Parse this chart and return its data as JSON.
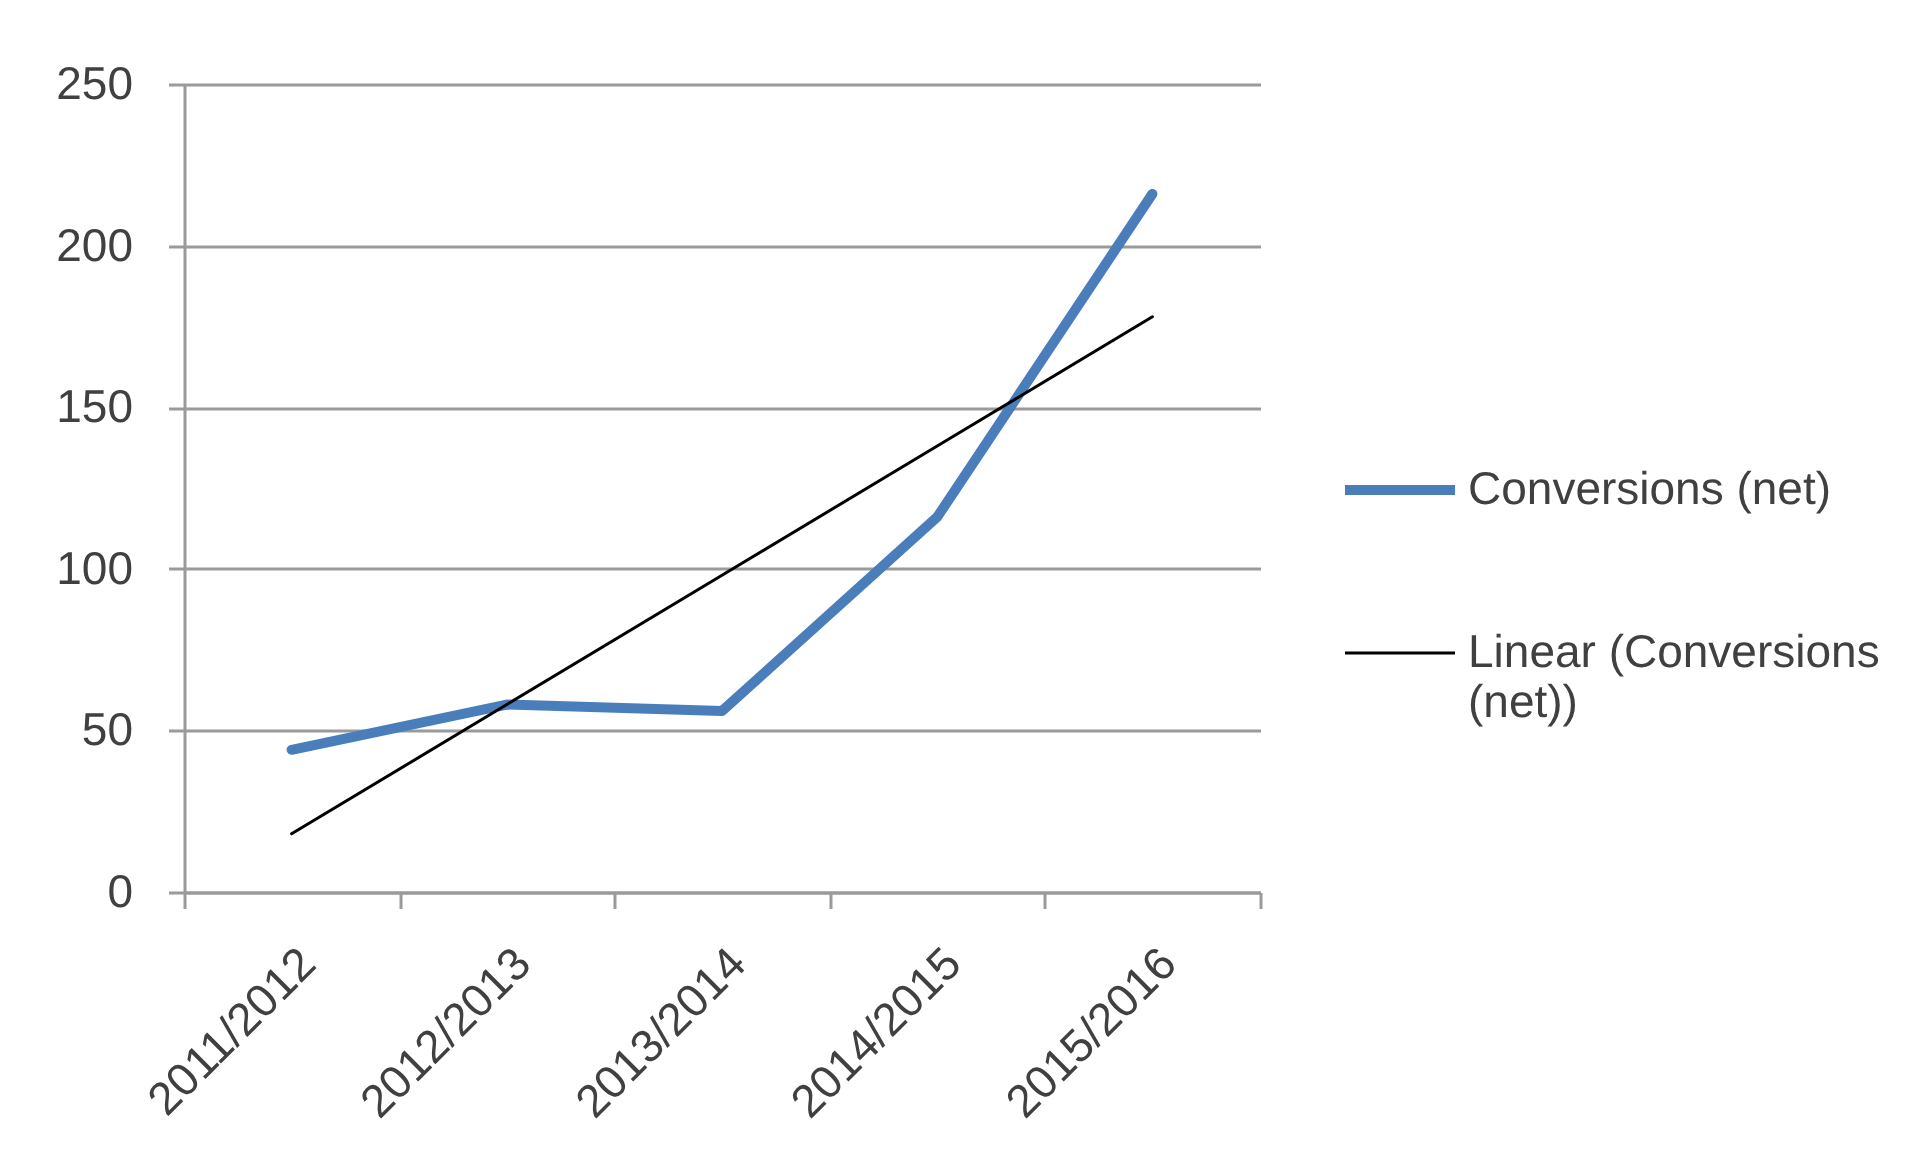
{
  "chart_data": {
    "type": "line",
    "categories": [
      "2011/2012",
      "2012/2013",
      "2013/2014",
      "2014/2015",
      "2015/2016"
    ],
    "series": [
      {
        "name": "Conversions (net)",
        "color": "#4a7ebb",
        "values": [
          44,
          58,
          56,
          116,
          216
        ]
      },
      {
        "type": "line",
        "name": "Linear (Conversions (net))",
        "color": "#000000",
        "values": [
          18,
          58,
          98,
          138,
          178
        ]
      }
    ],
    "ylim": [
      0,
      250
    ],
    "yticks": [
      0,
      50,
      100,
      150,
      200,
      250
    ],
    "grid": "y",
    "legend": "right",
    "line_style": "solid"
  }
}
